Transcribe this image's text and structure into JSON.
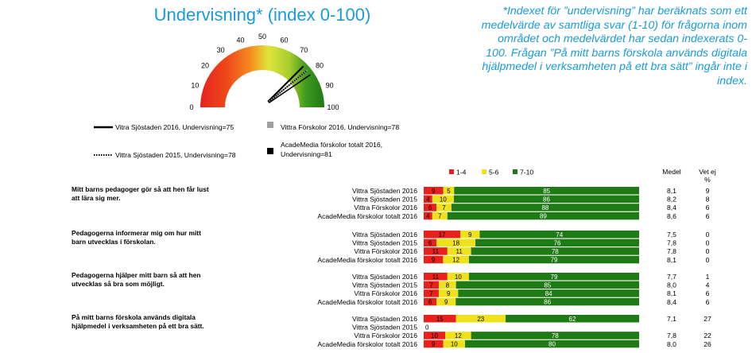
{
  "title": "Undervisning* (index 0-100)",
  "footnote": "*Indexet för ”undervisning” har beräknats som ett medelvärde av samtliga svar (1-10) för frågorna inom området och medelvärdet har sedan indexerats 0-100. Frågan ”På mitt barns förskola används digitala hjälpmedel i verksamheten på ett bra sätt” ingår inte i index.",
  "gauge": {
    "ticks": [
      "0",
      "10",
      "20",
      "30",
      "40",
      "50",
      "60",
      "70",
      "80",
      "90",
      "100"
    ],
    "colors": {
      "red": "#e8211c",
      "orange": "#f58a1f",
      "yellow": "#dfe53a",
      "green": "#1e7a14"
    }
  },
  "legend": [
    {
      "label": "Vitra Sjöstaden 2016, Undervisning=75",
      "style": "solid"
    },
    {
      "label": "Vittra Förskolor 2016, Undervisning=78",
      "style": "gray-square"
    },
    {
      "label": "Vittra Sjöstaden 2015, Undervisning=78",
      "style": "dotted"
    },
    {
      "label": "AcadeMedia förskolor totalt 2016, Undervisning=81",
      "style": "black-square"
    }
  ],
  "bar_legend": [
    "1-4",
    "5-6",
    "7-10"
  ],
  "headers": {
    "medel": "Medel",
    "vetej": "Vet ej",
    "vetej_unit": "%"
  },
  "chart_data": [
    {
      "type": "gauge",
      "range": [
        0,
        100
      ],
      "needles": [
        {
          "name": "Vitra Sjöstaden 2016",
          "value": 75
        },
        {
          "name": "Vittra Förskolor 2016",
          "value": 78
        },
        {
          "name": "Vittra Sjöstaden 2015",
          "value": 78
        },
        {
          "name": "AcadeMedia förskolor totalt 2016",
          "value": 81
        }
      ]
    },
    {
      "type": "bar",
      "stacked": true,
      "segments": [
        "1-4",
        "5-6",
        "7-10"
      ],
      "colors": [
        "#e8211c",
        "#f0e21a",
        "#1e7a14"
      ],
      "questions": [
        {
          "text": [
            "Mitt barns pedagoger gör så att hen får lust",
            "att lära sig mer."
          ],
          "rows": [
            {
              "label": "Vittra Sjöstaden 2016",
              "values": [
                9,
                5,
                85
              ],
              "medel": "8,1",
              "vetej": "9"
            },
            {
              "label": "Vittra Sjöstaden 2015",
              "values": [
                4,
                10,
                86
              ],
              "medel": "8,2",
              "vetej": "8"
            },
            {
              "label": "Vittra Förskolor 2016",
              "values": [
                6,
                7,
                88
              ],
              "medel": "8,4",
              "vetej": "6"
            },
            {
              "label": "AcadeMedia förskolor totalt 2016",
              "values": [
                4,
                7,
                89
              ],
              "medel": "8,6",
              "vetej": "6"
            }
          ]
        },
        {
          "text": [
            "Pedagogerna informerar mig om hur mitt",
            "barn utvecklas i förskolan."
          ],
          "rows": [
            {
              "label": "Vittra Sjöstaden 2016",
              "values": [
                17,
                9,
                74
              ],
              "medel": "7,5",
              "vetej": "0"
            },
            {
              "label": "Vittra Sjöstaden 2015",
              "values": [
                6,
                18,
                76
              ],
              "medel": "7,8",
              "vetej": "0"
            },
            {
              "label": "Vittra Förskolor 2016",
              "values": [
                11,
                11,
                78
              ],
              "medel": "7,8",
              "vetej": "0"
            },
            {
              "label": "AcadeMedia förskolor totalt 2016",
              "values": [
                9,
                12,
                79
              ],
              "medel": "8,1",
              "vetej": "0"
            }
          ]
        },
        {
          "text": [
            "Pedagogerna hjälper mitt barn så att hen",
            "utvecklas så bra som möjligt."
          ],
          "rows": [
            {
              "label": "Vittra Sjöstaden 2016",
              "values": [
                11,
                10,
                79
              ],
              "medel": "7,7",
              "vetej": "1"
            },
            {
              "label": "Vittra Sjöstaden 2015",
              "values": [
                7,
                8,
                85
              ],
              "medel": "8,0",
              "vetej": "4"
            },
            {
              "label": "Vittra Förskolor 2016",
              "values": [
                7,
                9,
                84
              ],
              "medel": "8,1",
              "vetej": "6"
            },
            {
              "label": "AcadeMedia förskolor totalt 2016",
              "values": [
                6,
                9,
                86
              ],
              "medel": "8,4",
              "vetej": "6"
            }
          ]
        },
        {
          "text": [
            "På mitt barns förskola används digitala",
            "hjälpmedel i verksamheten på ett bra sätt."
          ],
          "rows": [
            {
              "label": "Vittra Sjöstaden 2016",
              "values": [
                15,
                23,
                62
              ],
              "medel": "7,1",
              "vetej": "27"
            },
            {
              "label": "Vittra Sjöstaden 2015",
              "values": [
                0,
                0,
                0
              ],
              "medel": "",
              "vetej": "",
              "empty_label": "0"
            },
            {
              "label": "Vittra Förskolor 2016",
              "values": [
                10,
                12,
                78
              ],
              "medel": "7,8",
              "vetej": "22"
            },
            {
              "label": "AcadeMedia förskolor totalt 2016",
              "values": [
                9,
                10,
                80
              ],
              "medel": "8,0",
              "vetej": "26"
            }
          ]
        }
      ]
    }
  ]
}
